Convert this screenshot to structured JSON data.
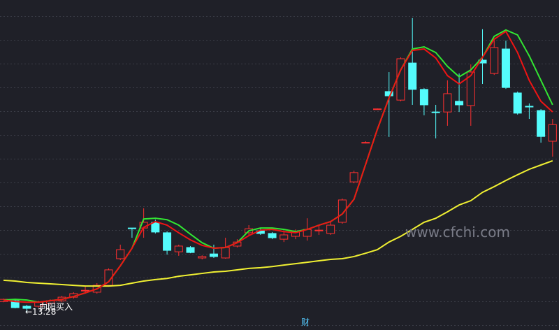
{
  "chart_data": {
    "type": "candlestick",
    "ylim": [
      12.52,
      26.4
    ],
    "up_color": "#ff3030",
    "down_color": "#54fcfc",
    "open": [
      13.72,
      13.75,
      13.52,
      13.52,
      13.64,
      13.75,
      13.9,
      14.16,
      14.11,
      14.4,
      15.52,
      16.81,
      16.81,
      17.05,
      16.61,
      15.81,
      15.99,
      15.55,
      15.72,
      15.55,
      16.05,
      16.61,
      16.69,
      16.58,
      16.34,
      16.46,
      16.46,
      16.69,
      16.58,
      17.05,
      18.75,
      20.4,
      21.81,
      22.55,
      22.19,
      23.75,
      22.64,
      21.69,
      21.69,
      22.14,
      21.96,
      23.87,
      23.31,
      24.34,
      22.49,
      21.93,
      21.75,
      20.46
    ],
    "high": [
      13.84,
      13.81,
      13.58,
      13.75,
      13.81,
      13.96,
      14.11,
      14.34,
      14.49,
      15.11,
      16.11,
      16.81,
      17.64,
      17.16,
      16.67,
      16.11,
      16.05,
      15.66,
      16.11,
      16.4,
      16.34,
      16.93,
      16.78,
      16.64,
      16.64,
      16.75,
      17.22,
      16.93,
      17.11,
      18.05,
      19.22,
      20.46,
      21.84,
      23.37,
      23.99,
      25.64,
      22.69,
      21.99,
      23.02,
      23.31,
      23.69,
      25.17,
      24.75,
      24.69,
      22.55,
      22.05,
      21.81,
      21.4
    ],
    "low": [
      13.69,
      13.43,
      13.28,
      13.46,
      13.58,
      13.69,
      13.84,
      14.08,
      14.05,
      14.34,
      15.46,
      16.4,
      16.4,
      16.58,
      15.69,
      15.64,
      15.75,
      15.49,
      15.55,
      15.52,
      15.99,
      16.52,
      16.52,
      16.34,
      16.22,
      16.34,
      16.28,
      16.52,
      16.52,
      16.99,
      18.69,
      20.37,
      21.78,
      20.64,
      22.14,
      21.99,
      21.55,
      20.58,
      21.11,
      21.69,
      21.11,
      22.87,
      23.25,
      22.66,
      21.58,
      21.4,
      20.4,
      19.81
    ],
    "close": [
      13.81,
      13.46,
      13.43,
      13.69,
      13.75,
      13.9,
      14.05,
      14.19,
      14.4,
      15.05,
      15.9,
      16.8,
      17.05,
      16.64,
      15.87,
      16.05,
      15.78,
      15.61,
      15.61,
      15.99,
      16.22,
      16.78,
      16.58,
      16.4,
      16.52,
      16.67,
      16.75,
      16.72,
      16.93,
      17.99,
      19.14,
      20.41,
      21.82,
      22.37,
      23.93,
      22.64,
      21.99,
      21.66,
      22.46,
      21.99,
      23.37,
      23.75,
      24.4,
      22.72,
      21.64,
      21.9,
      20.66,
      21.16
    ],
    "lines": [
      {
        "color": "#f0f032",
        "values": [
          14.61,
          14.58,
          14.52,
          14.49,
          14.46,
          14.43,
          14.4,
          14.37,
          14.37,
          14.37,
          14.4,
          14.49,
          14.58,
          14.64,
          14.69,
          14.78,
          14.84,
          14.9,
          14.96,
          14.99,
          15.05,
          15.11,
          15.14,
          15.19,
          15.25,
          15.31,
          15.37,
          15.43,
          15.49,
          15.52,
          15.61,
          15.75,
          15.9,
          16.22,
          16.46,
          16.75,
          17.05,
          17.22,
          17.49,
          17.78,
          17.96,
          18.31,
          18.55,
          18.81,
          19.05,
          19.28,
          19.46,
          19.64
        ]
      },
      {
        "color": "#32e632",
        "values": [
          13.78,
          13.81,
          13.78,
          13.69,
          13.75,
          13.81,
          13.93,
          14.08,
          14.25,
          14.55,
          15.22,
          15.96,
          17.19,
          17.22,
          17.16,
          16.93,
          16.55,
          16.19,
          15.96,
          15.99,
          16.19,
          16.69,
          16.81,
          16.81,
          16.75,
          16.66,
          16.75,
          16.93,
          17.08,
          17.4,
          18.02,
          19.49,
          20.96,
          22.28,
          23.46,
          24.34,
          24.43,
          24.19,
          23.61,
          23.17,
          23.46,
          23.99,
          24.87,
          25.14,
          24.93,
          24.05,
          23.02,
          21.99
        ]
      },
      {
        "color": "#f01414",
        "values": [
          13.78,
          13.72,
          13.69,
          13.69,
          13.75,
          13.81,
          13.93,
          14.08,
          14.25,
          14.55,
          15.22,
          15.96,
          16.84,
          17.08,
          16.93,
          16.61,
          16.31,
          16.08,
          15.96,
          15.99,
          16.19,
          16.49,
          16.72,
          16.75,
          16.66,
          16.61,
          16.75,
          16.93,
          17.08,
          17.4,
          18.02,
          19.49,
          20.96,
          22.28,
          23.46,
          24.28,
          24.34,
          23.96,
          23.22,
          22.87,
          23.22,
          23.99,
          24.75,
          25.08,
          24.19,
          23.02,
          22.14,
          21.69
        ]
      }
    ],
    "signal_text": "向阳买入",
    "low_marker": {
      "value": 13.28,
      "label": "←13.28"
    },
    "watermark": "www.cfchi.com",
    "bottom_label": "财"
  }
}
